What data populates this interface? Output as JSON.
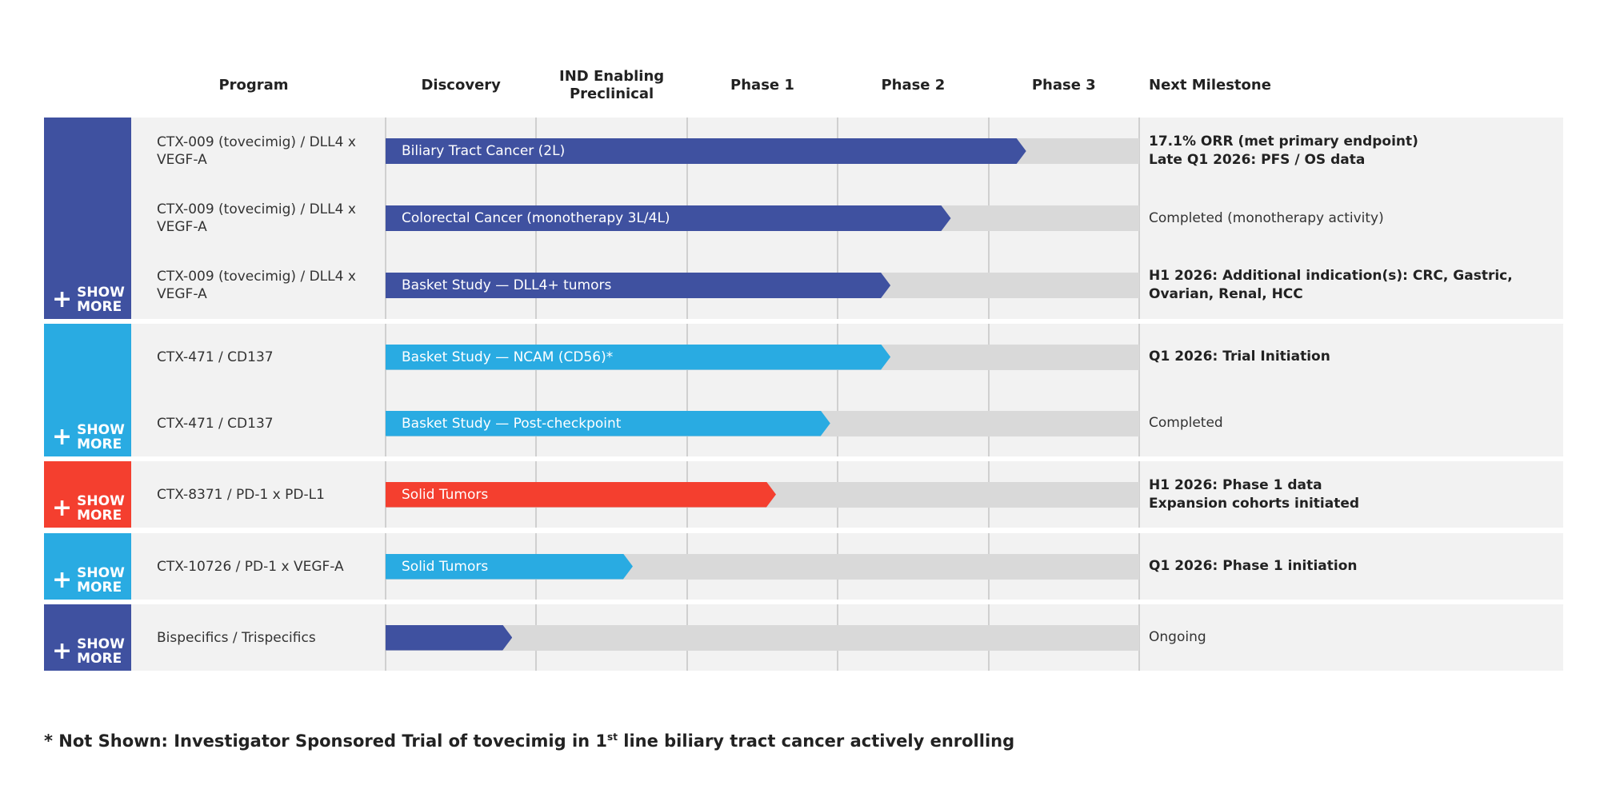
{
  "colors": {
    "navy": "#3f51a0",
    "sky": "#29abe2",
    "red": "#f43f2f",
    "track": "#d9d9d9",
    "row_bg": "#f2f2f2"
  },
  "headers": {
    "program": "Program",
    "stages": [
      "Discovery",
      "IND Enabling Preclinical",
      "Phase 1",
      "Phase 2",
      "Phase 3"
    ],
    "milestone": "Next Milestone"
  },
  "show_more": {
    "icon": "plus-icon",
    "line1": "SHOW",
    "line2": "MORE"
  },
  "groups": [
    {
      "color": "#3f51a0",
      "rows": [
        {
          "program": "CTX-009 (tovecimig) / DLL4 x VEGF-A",
          "indication": "Biliary Tract Cancer (2L)",
          "progress_stages": 4.25,
          "milestone": [
            "17.1% ORR (met primary endpoint)",
            "Late Q1 2026: PFS / OS data"
          ],
          "milestone_bold": true
        },
        {
          "program": "CTX-009 (tovecimig) / DLL4 x VEGF-A",
          "indication": "Colorectal Cancer (monotherapy 3L/4L)",
          "progress_stages": 3.75,
          "milestone": [
            "Completed (monotherapy activity)"
          ],
          "milestone_bold": false
        },
        {
          "program": "CTX-009 (tovecimig) / DLL4 x VEGF-A",
          "indication": "Basket Study — DLL4+ tumors",
          "progress_stages": 3.35,
          "milestone": [
            "H1 2026: Additional indication(s): CRC, Gastric, Ovarian, Renal, HCC"
          ],
          "milestone_bold": true
        }
      ]
    },
    {
      "color": "#29abe2",
      "rows": [
        {
          "program": "CTX-471 / CD137",
          "indication": "Basket Study — NCAM (CD56)*",
          "progress_stages": 3.35,
          "milestone": [
            "Q1 2026: Trial Initiation"
          ],
          "milestone_bold": true
        },
        {
          "program": "CTX-471 / CD137",
          "indication": "Basket Study — Post-checkpoint",
          "progress_stages": 2.95,
          "milestone": [
            "Completed"
          ],
          "milestone_bold": false
        }
      ]
    },
    {
      "color": "#f43f2f",
      "rows": [
        {
          "program": "CTX-8371 / PD-1 x PD-L1",
          "indication": "Solid Tumors",
          "progress_stages": 2.59,
          "milestone": [
            "H1 2026: Phase 1 data",
            "Expansion cohorts initiated"
          ],
          "milestone_bold": true
        }
      ]
    },
    {
      "color": "#29abe2",
      "rows": [
        {
          "program": "CTX-10726 / PD-1 x VEGF-A",
          "indication": "Solid Tumors",
          "progress_stages": 1.64,
          "milestone": [
            "Q1 2026: Phase 1 initiation"
          ],
          "milestone_bold": true
        }
      ]
    },
    {
      "color": "#3f51a0",
      "rows": [
        {
          "program": "Bispecifics / Trispecifics",
          "indication": "",
          "progress_stages": 0.84,
          "milestone": [
            "Ongoing"
          ],
          "milestone_bold": false
        }
      ]
    }
  ],
  "footnote": {
    "pre": "* Not Shown: Investigator Sponsored Trial of tovecimig in 1",
    "sup": "st",
    "post": " line biliary tract cancer actively enrolling"
  }
}
